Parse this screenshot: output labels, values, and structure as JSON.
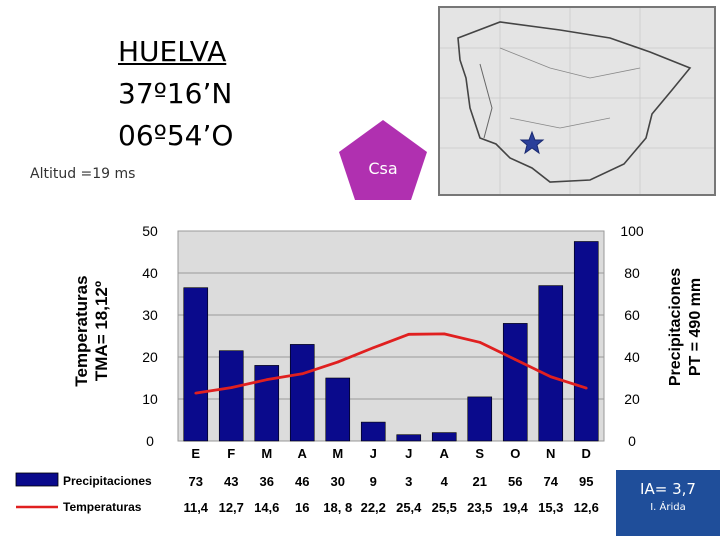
{
  "header": {
    "city": "HUELVA",
    "latitude": "37º16’N",
    "longitude": "06º54’O",
    "altitude": "Altitud =19 ms",
    "climate_code": "Csa"
  },
  "index": {
    "ia_label": "IA= 3,7",
    "ia_class": "I. Árida"
  },
  "colors": {
    "bars": "#0a0a8c",
    "temperature_line": "#e02020",
    "badge": "#b030b0",
    "plot_bg": "#dcdcdc"
  },
  "chart_data": {
    "type": "bar",
    "title": "",
    "categories": [
      "E",
      "F",
      "M",
      "A",
      "M",
      "J",
      "J",
      "A",
      "S",
      "O",
      "N",
      "D"
    ],
    "left_axis": {
      "label_line1": "Temperaturas",
      "label_line2": "TMA= 18,12º",
      "range": [
        0,
        50
      ],
      "ticks": [
        "0",
        "10",
        "20",
        "30",
        "40",
        "50"
      ]
    },
    "right_axis": {
      "label_line1": "Precipitaciones",
      "label_line2": "PT = 490 mm",
      "range": [
        0,
        100
      ],
      "ticks": [
        "0",
        "20",
        "40",
        "60",
        "80",
        "100"
      ]
    },
    "grid": true,
    "series": [
      {
        "name": "Precipitaciones",
        "kind": "bar",
        "axis": "right",
        "values": [
          73,
          43,
          36,
          46,
          30,
          9,
          3,
          4,
          21,
          56,
          74,
          95
        ],
        "labels": [
          "73",
          "43",
          "36",
          "46",
          "30",
          "9",
          "3",
          "4",
          "21",
          "56",
          "74",
          "95"
        ]
      },
      {
        "name": "Temperaturas",
        "kind": "line",
        "axis": "left",
        "values": [
          11.4,
          12.7,
          14.6,
          16,
          18.8,
          22.2,
          25.4,
          25.5,
          23.5,
          19.4,
          15.3,
          12.6
        ],
        "labels": [
          "11,4",
          "12,7",
          "14,6",
          "16",
          "18, 8",
          "22,2",
          "25,4",
          "25,5",
          "23,5",
          "19,4",
          "15,3",
          "12,6"
        ]
      }
    ]
  }
}
